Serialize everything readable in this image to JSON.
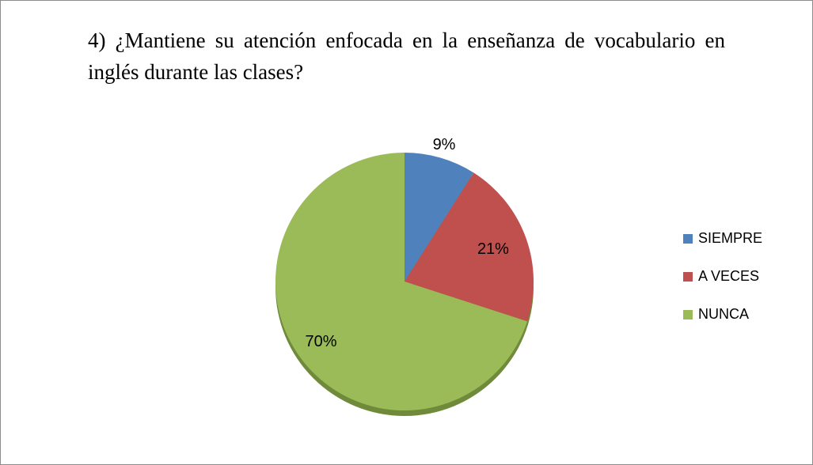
{
  "chart_data": {
    "type": "pie",
    "title": "4) ¿Mantiene su atención enfocada en la enseñanza de vocabulario en inglés durante las clases?",
    "categories": [
      "SIEMPRE",
      "A VECES",
      "NUNCA"
    ],
    "values": [
      9,
      21,
      70
    ],
    "value_labels": [
      "9%",
      "21%",
      "70%"
    ],
    "colors": [
      "#4f81bd",
      "#c0504d",
      "#9bbb59"
    ],
    "legend": "right"
  }
}
